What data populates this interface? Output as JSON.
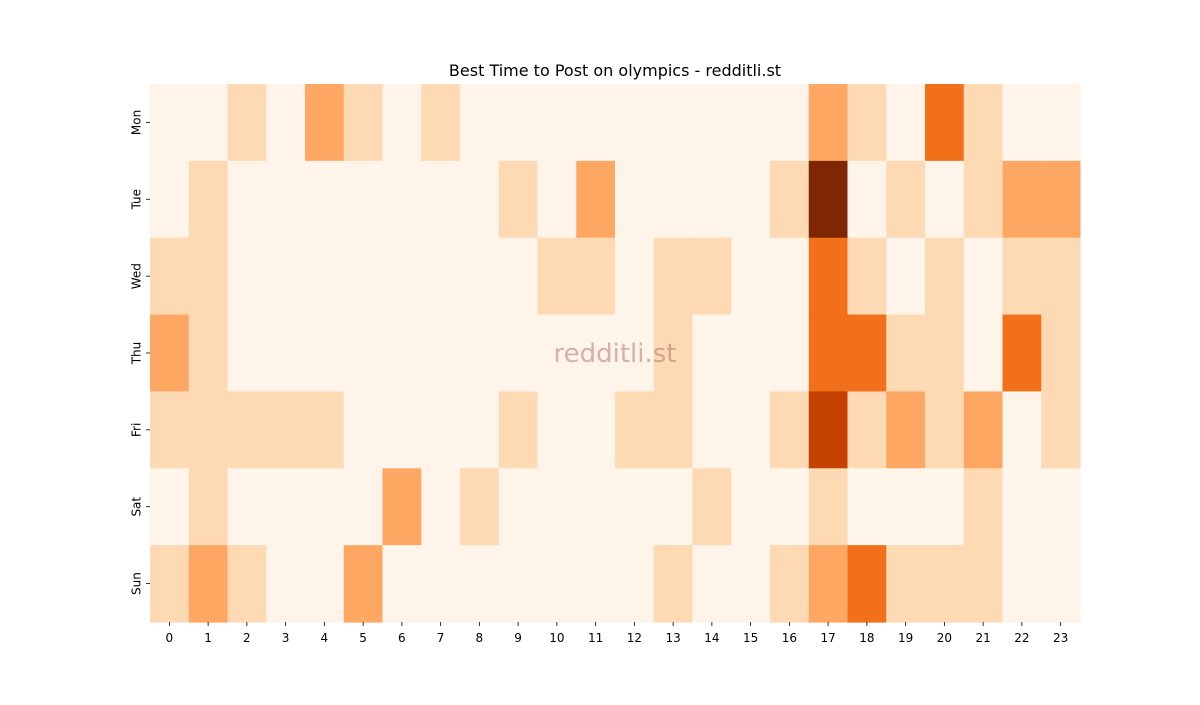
{
  "chart_data": {
    "type": "heatmap",
    "title": "Best Time to Post on olympics - redditli.st",
    "watermark": "redditli.st",
    "x_categories": [
      "0",
      "1",
      "2",
      "3",
      "4",
      "5",
      "6",
      "7",
      "8",
      "9",
      "10",
      "11",
      "12",
      "13",
      "14",
      "15",
      "16",
      "17",
      "18",
      "19",
      "20",
      "21",
      "22",
      "23"
    ],
    "y_categories": [
      "Mon",
      "Tue",
      "Wed",
      "Thu",
      "Fri",
      "Sat",
      "Sun"
    ],
    "values": [
      [
        0,
        0,
        1,
        0,
        2,
        1,
        0,
        1,
        0,
        0,
        0,
        0,
        0,
        0,
        0,
        0,
        0,
        2,
        1,
        0,
        3,
        1,
        0,
        0
      ],
      [
        0,
        1,
        0,
        0,
        0,
        0,
        0,
        0,
        0,
        1,
        0,
        2,
        0,
        0,
        0,
        0,
        1,
        5,
        0,
        1,
        0,
        1,
        2,
        2
      ],
      [
        1,
        1,
        0,
        0,
        0,
        0,
        0,
        0,
        0,
        0,
        1,
        1,
        0,
        1,
        1,
        0,
        0,
        3,
        1,
        0,
        1,
        0,
        1,
        1
      ],
      [
        2,
        1,
        0,
        0,
        0,
        0,
        0,
        0,
        0,
        0,
        0,
        0,
        0,
        1,
        0,
        0,
        0,
        3,
        3,
        1,
        1,
        0,
        3,
        1
      ],
      [
        1,
        1,
        1,
        1,
        1,
        0,
        0,
        0,
        0,
        1,
        0,
        0,
        1,
        1,
        0,
        0,
        1,
        4,
        1,
        2,
        1,
        2,
        0,
        1
      ],
      [
        0,
        1,
        0,
        0,
        0,
        0,
        2,
        0,
        1,
        0,
        0,
        0,
        0,
        0,
        1,
        0,
        0,
        1,
        0,
        0,
        0,
        1,
        0,
        0
      ],
      [
        1,
        2,
        1,
        0,
        0,
        2,
        0,
        0,
        0,
        0,
        0,
        0,
        0,
        1,
        0,
        0,
        1,
        2,
        3,
        1,
        1,
        1,
        0,
        0
      ]
    ],
    "value_range": [
      0,
      5
    ],
    "colorscale": [
      "#fff4e9",
      "#fdd9b4",
      "#fda762",
      "#f3701b",
      "#c54102",
      "#7f2704"
    ],
    "colorbar": false,
    "grid": false
  }
}
